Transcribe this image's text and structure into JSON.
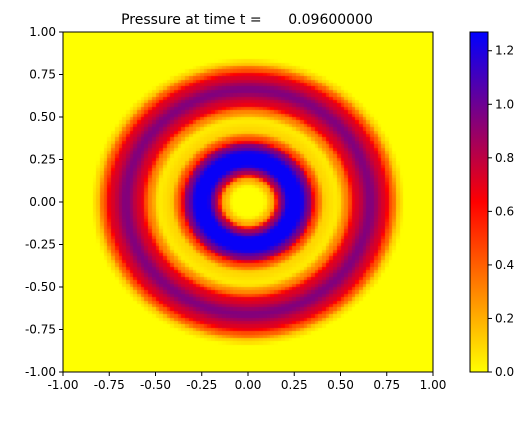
{
  "chart_data": {
    "type": "heatmap",
    "title": "Pressure at time t =      0.09600000",
    "xlabel": "",
    "ylabel": "",
    "xlim": [
      -1.0,
      1.0
    ],
    "ylim": [
      -1.0,
      1.0
    ],
    "x_ticks": [
      "-1.00",
      "-0.75",
      "-0.50",
      "-0.25",
      "0.00",
      "0.25",
      "0.50",
      "0.75",
      "1.00"
    ],
    "y_ticks": [
      "-1.00",
      "-0.75",
      "-0.50",
      "-0.25",
      "0.00",
      "0.25",
      "0.50",
      "0.75",
      "1.00"
    ],
    "colorbar": {
      "range": [
        0.0,
        1.27
      ],
      "ticks": [
        "0.0",
        "0.2",
        "0.4",
        "0.6",
        "0.8",
        "1.0",
        "1.2"
      ],
      "colors": [
        "#ffff00",
        "#ff0000",
        "#0000ff"
      ]
    },
    "field": {
      "grid": 100,
      "center": [
        0.0,
        0.0
      ],
      "radial_profile": {
        "r": [
          0.0,
          0.08,
          0.13,
          0.17,
          0.22,
          0.28,
          0.33,
          0.37,
          0.42,
          0.48,
          0.53,
          0.58,
          0.66,
          0.74,
          0.78,
          0.82,
          0.85,
          1.5
        ],
        "value": [
          0.0,
          0.0,
          0.2,
          0.85,
          1.25,
          1.25,
          0.95,
          0.45,
          0.1,
          0.05,
          0.3,
          0.72,
          0.95,
          0.72,
          0.4,
          0.1,
          0.0,
          0.0
        ]
      }
    }
  }
}
